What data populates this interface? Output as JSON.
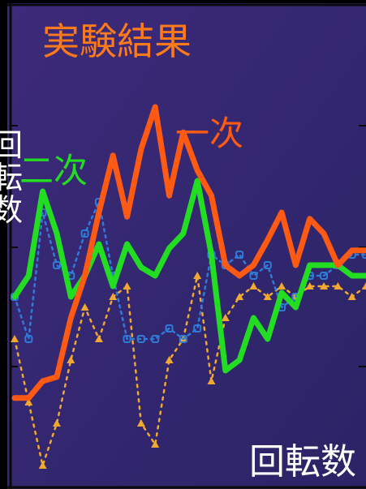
{
  "chart_data": {
    "type": "line",
    "title": "実験結果",
    "xlabel": "回転数",
    "ylabel": "回転数",
    "xlim": [
      0,
      100
    ],
    "ylim": [
      -1.0,
      1.0
    ],
    "grid": false,
    "x": [
      0,
      4,
      8,
      12,
      16,
      20,
      24,
      28,
      32,
      36,
      40,
      44,
      48,
      52,
      56,
      60,
      64,
      68,
      72,
      76,
      80,
      84,
      88,
      92,
      96,
      100
    ],
    "series": [
      {
        "name": "一次",
        "values": [
          -0.58,
          -0.58,
          -0.5,
          -0.48,
          -0.2,
          0.0,
          0.3,
          0.57,
          0.28,
          0.6,
          0.8,
          0.38,
          0.68,
          0.5,
          0.38,
          0.05,
          0.0,
          0.05,
          0.17,
          0.3,
          0.05,
          0.27,
          0.2,
          0.05,
          0.12,
          0.12
        ]
      },
      {
        "name": "二次",
        "values": [
          -0.1,
          0.0,
          0.4,
          0.2,
          -0.1,
          0.0,
          0.15,
          -0.05,
          0.15,
          0.04,
          0.0,
          0.13,
          0.2,
          0.45,
          0.1,
          -0.45,
          -0.4,
          -0.2,
          -0.3,
          -0.08,
          -0.15,
          0.05,
          0.05,
          0.05,
          0.0,
          0.0
        ]
      },
      {
        "name": "",
        "values": [
          -0.1,
          -0.3,
          0.3,
          0.05,
          0.0,
          0.2,
          0.35,
          0.0,
          -0.3,
          -0.3,
          -0.3,
          -0.25,
          -0.3,
          -0.25,
          0.1,
          0.05,
          0.1,
          0.0,
          0.05,
          -0.15,
          -0.1,
          0.0,
          0.0,
          0.05,
          0.1,
          0.1
        ]
      },
      {
        "name": "",
        "values": [
          -0.3,
          -0.6,
          -0.9,
          -0.7,
          -0.4,
          -0.15,
          -0.3,
          -0.1,
          -0.05,
          -0.7,
          -0.8,
          -0.4,
          -0.3,
          0.0,
          -0.5,
          -0.2,
          -0.1,
          -0.05,
          -0.1,
          -0.05,
          -0.1,
          -0.05,
          -0.05,
          -0.05,
          -0.1,
          -0.05
        ]
      }
    ],
    "colors": {
      "background_top": "#3d2a7a",
      "background_bottom": "#2a2466",
      "frame": "#0a0a0a",
      "title": "#ff7a1a",
      "series_1": "#ff5a14",
      "series_2": "#22dd22",
      "series_3": "#2e7bd8",
      "series_4": "#f0a830"
    }
  }
}
